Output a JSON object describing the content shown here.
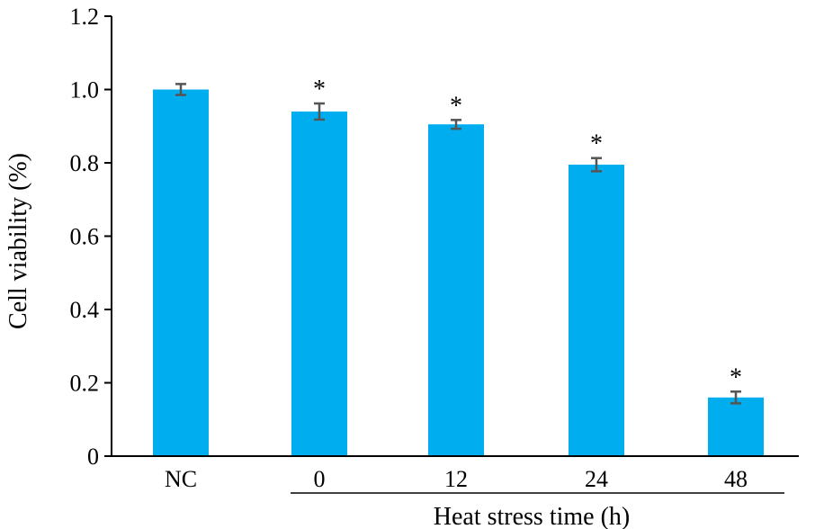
{
  "chart_data": {
    "type": "bar",
    "categories": [
      "NC",
      "0",
      "12",
      "24",
      "48"
    ],
    "values": [
      1.0,
      0.94,
      0.905,
      0.795,
      0.16
    ],
    "errors": [
      0.015,
      0.022,
      0.012,
      0.018,
      0.016
    ],
    "significance": [
      "",
      "*",
      "*",
      "*",
      "*"
    ],
    "bar_color": "#00AEEF",
    "error_color": "#555555",
    "ylabel": "Cell viability (%)",
    "xlabel": "Heat stress time (h)",
    "ylim": [
      0,
      1.2
    ],
    "yticks": [
      0,
      0.2,
      0.4,
      0.6,
      0.8,
      1.0,
      1.2
    ],
    "ytick_labels": [
      "0",
      "0.2",
      "0.4",
      "0.6",
      "0.8",
      "1.0",
      "1.2"
    ],
    "grid": false,
    "legend": "none"
  }
}
